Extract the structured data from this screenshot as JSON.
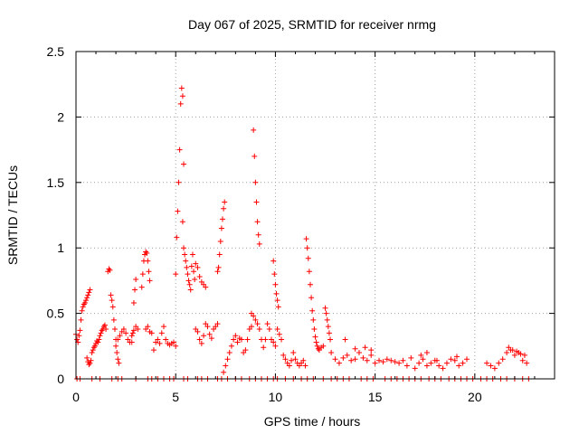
{
  "chart_data": {
    "type": "scatter",
    "title": "Day 067 of 2025, SRMTID for receiver nrmg",
    "xlabel": "GPS time / hours",
    "ylabel": "SRMTID / TECUs",
    "xlim": [
      0,
      24
    ],
    "ylim": [
      0,
      2.5
    ],
    "xticks": [
      0,
      5,
      10,
      15,
      20
    ],
    "yticks": [
      0,
      0.5,
      1,
      1.5,
      2,
      2.5
    ],
    "ytick_labels": [
      "0",
      "0.5",
      "1",
      "1.5",
      "2",
      "2.5"
    ],
    "xtick_labels": [
      "0",
      "5",
      "10",
      "15",
      "20"
    ],
    "grid": true,
    "marker": "+",
    "series_color": "#ff0000",
    "series": [
      {
        "name": "segment-0",
        "x": [
          0.0,
          0.05,
          0.1,
          0.15,
          0.2,
          0.25,
          0.3,
          0.35,
          0.4,
          0.45,
          0.5,
          0.55,
          0.6,
          0.65,
          0.7
        ],
        "y": [
          0.34,
          0.3,
          0.28,
          0.33,
          0.37,
          0.45,
          0.52,
          0.55,
          0.57,
          0.58,
          0.6,
          0.62,
          0.64,
          0.66,
          0.68
        ]
      },
      {
        "name": "segment-1",
        "x": [
          0.55,
          0.6,
          0.65,
          0.7,
          0.75,
          0.8,
          0.85,
          0.9,
          0.95,
          1.0,
          1.05,
          1.1,
          1.15,
          1.2,
          1.25,
          1.3,
          1.35,
          1.4,
          1.45,
          1.5
        ],
        "y": [
          0.16,
          0.13,
          0.11,
          0.12,
          0.14,
          0.2,
          0.22,
          0.24,
          0.25,
          0.27,
          0.29,
          0.28,
          0.3,
          0.33,
          0.35,
          0.37,
          0.38,
          0.4,
          0.41,
          0.38
        ]
      },
      {
        "name": "segment-2",
        "x": [
          1.6,
          1.65,
          1.7,
          1.75,
          1.8,
          1.85,
          1.9,
          1.95,
          2.0,
          2.05,
          2.1,
          2.15
        ],
        "y": [
          0.82,
          0.84,
          0.83,
          0.64,
          0.6,
          0.55,
          0.45,
          0.38,
          0.3,
          0.2,
          0.15,
          0.12
        ]
      },
      {
        "name": "segment-3",
        "x": [
          2.0,
          2.1,
          2.2,
          2.3,
          2.4,
          2.5,
          2.6,
          2.7,
          2.8,
          2.9,
          3.0,
          3.1
        ],
        "y": [
          0.25,
          0.3,
          0.33,
          0.36,
          0.38,
          0.35,
          0.3,
          0.28,
          0.33,
          0.37,
          0.4,
          0.38
        ]
      },
      {
        "name": "segment-4",
        "x": [
          2.8,
          2.85,
          2.9,
          2.95,
          3.0
        ],
        "y": [
          0.28,
          0.35,
          0.58,
          0.68,
          0.76
        ]
      },
      {
        "name": "segment-5",
        "x": [
          3.3,
          3.35,
          3.4,
          3.45,
          3.5,
          3.55,
          3.6,
          3.65,
          3.7
        ],
        "y": [
          0.7,
          0.8,
          0.9,
          0.95,
          0.97,
          0.96,
          0.9,
          0.82,
          0.75
        ]
      },
      {
        "name": "segment-6",
        "x": [
          3.5,
          3.6,
          3.7,
          3.8,
          3.9,
          4.0,
          4.1,
          4.2,
          4.3,
          4.4,
          4.5,
          4.6,
          4.7,
          4.8,
          4.9,
          5.0
        ],
        "y": [
          0.38,
          0.4,
          0.36,
          0.35,
          0.22,
          0.28,
          0.3,
          0.27,
          0.35,
          0.4,
          0.3,
          0.27,
          0.26,
          0.27,
          0.28,
          0.25
        ]
      },
      {
        "name": "segment-7",
        "x": [
          5.0,
          5.05,
          5.1,
          5.15,
          5.2,
          5.25,
          5.3,
          5.35,
          5.4
        ],
        "y": [
          0.8,
          1.08,
          1.28,
          1.5,
          1.75,
          2.1,
          2.22,
          2.16,
          1.64
        ]
      },
      {
        "name": "segment-8",
        "x": [
          5.35,
          5.4,
          5.45,
          5.5,
          5.55,
          5.6,
          5.65,
          5.7,
          5.75,
          5.8,
          5.85,
          5.9,
          5.95,
          6.0,
          6.1,
          6.2,
          6.3,
          6.4,
          6.5
        ],
        "y": [
          1.2,
          1.0,
          0.95,
          0.9,
          0.85,
          0.8,
          0.75,
          0.72,
          0.68,
          0.86,
          0.95,
          0.82,
          0.76,
          0.88,
          0.85,
          0.78,
          0.74,
          0.72,
          0.7
        ]
      },
      {
        "name": "segment-9",
        "x": [
          6.0,
          6.1,
          6.2,
          6.3,
          6.4,
          6.5,
          6.6,
          6.7,
          6.8,
          6.9,
          7.0,
          7.1
        ],
        "y": [
          0.38,
          0.36,
          0.3,
          0.27,
          0.33,
          0.42,
          0.4,
          0.34,
          0.31,
          0.38,
          0.4,
          0.42
        ]
      },
      {
        "name": "segment-10",
        "x": [
          7.1,
          7.15,
          7.2,
          7.25,
          7.3,
          7.35,
          7.4,
          7.45
        ],
        "y": [
          0.82,
          0.85,
          0.95,
          1.05,
          1.15,
          1.22,
          1.3,
          1.35
        ]
      },
      {
        "name": "segment-11",
        "x": [
          7.4,
          7.5,
          7.6,
          7.7,
          7.8,
          7.9,
          8.0,
          8.1,
          8.2,
          8.3,
          8.4,
          8.5,
          8.6,
          8.7,
          8.8
        ],
        "y": [
          0.05,
          0.1,
          0.15,
          0.2,
          0.25,
          0.3,
          0.33,
          0.28,
          0.31,
          0.3,
          0.2,
          0.22,
          0.3,
          0.38,
          0.4
        ]
      },
      {
        "name": "segment-12",
        "x": [
          8.9,
          8.95,
          9.0,
          9.05,
          9.1,
          9.15,
          9.2
        ],
        "y": [
          1.9,
          1.7,
          1.5,
          1.35,
          1.2,
          1.1,
          1.03
        ]
      },
      {
        "name": "segment-13",
        "x": [
          8.8,
          8.9,
          9.0,
          9.1,
          9.2,
          9.3,
          9.4,
          9.5,
          9.6,
          9.7,
          9.8,
          9.9,
          10.0,
          10.1,
          10.2,
          10.3
        ],
        "y": [
          0.5,
          0.48,
          0.45,
          0.42,
          0.38,
          0.3,
          0.24,
          0.3,
          0.42,
          0.38,
          0.3,
          0.28,
          0.25,
          0.38,
          0.34,
          0.3
        ]
      },
      {
        "name": "segment-14",
        "x": [
          9.9,
          9.95,
          10.0,
          10.05,
          10.1,
          10.15
        ],
        "y": [
          0.9,
          0.8,
          0.72,
          0.65,
          0.6,
          0.55
        ]
      },
      {
        "name": "segment-15",
        "x": [
          10.4,
          10.5,
          10.6,
          10.7,
          10.8,
          10.9,
          11.0,
          11.1,
          11.2,
          11.3,
          11.4,
          11.5
        ],
        "y": [
          0.18,
          0.15,
          0.12,
          0.1,
          0.14,
          0.2,
          0.15,
          0.12,
          0.1,
          0.12,
          0.14,
          0.1
        ]
      },
      {
        "name": "segment-16",
        "x": [
          11.55,
          11.6,
          11.65,
          11.7,
          11.75,
          11.8,
          11.85,
          11.9,
          11.95,
          12.0,
          12.05,
          12.1,
          12.15,
          12.2,
          12.3,
          12.4
        ],
        "y": [
          1.07,
          1.0,
          0.92,
          0.82,
          0.72,
          0.62,
          0.52,
          0.45,
          0.38,
          0.32,
          0.28,
          0.25,
          0.23,
          0.22,
          0.24,
          0.25
        ]
      },
      {
        "name": "segment-17",
        "x": [
          12.5,
          12.55,
          12.6,
          12.65,
          12.7,
          12.75
        ],
        "y": [
          0.54,
          0.5,
          0.45,
          0.4,
          0.35,
          0.3
        ]
      },
      {
        "name": "segment-18",
        "x": [
          12.8,
          13.0,
          13.2,
          13.4,
          13.6,
          13.8,
          14.0,
          14.2,
          14.4,
          14.6,
          14.8,
          15.0,
          15.2,
          15.4,
          15.6,
          15.8,
          16.0
        ],
        "y": [
          0.2,
          0.15,
          0.12,
          0.16,
          0.18,
          0.14,
          0.15,
          0.2,
          0.16,
          0.14,
          0.18,
          0.12,
          0.14,
          0.13,
          0.15,
          0.14,
          0.13
        ]
      },
      {
        "name": "segment-19",
        "x": [
          13.5,
          14.0,
          14.5,
          14.8
        ],
        "y": [
          0.3,
          0.23,
          0.24,
          0.22
        ]
      },
      {
        "name": "segment-20",
        "x": [
          16.2,
          16.4,
          16.6,
          16.8,
          17.0,
          17.2,
          17.4,
          17.6,
          17.8,
          18.0,
          18.2,
          18.4,
          18.6,
          18.8,
          19.0,
          19.2,
          19.4
        ],
        "y": [
          0.12,
          0.14,
          0.1,
          0.16,
          0.08,
          0.12,
          0.15,
          0.1,
          0.12,
          0.14,
          0.1,
          0.08,
          0.12,
          0.15,
          0.14,
          0.1,
          0.12
        ]
      },
      {
        "name": "segment-21",
        "x": [
          17.3,
          17.6,
          18.1,
          19.1,
          19.6
        ],
        "y": [
          0.18,
          0.2,
          0.14,
          0.17,
          0.15
        ]
      },
      {
        "name": "segment-22",
        "x": [
          20.6,
          20.8,
          21.0,
          21.2,
          21.4,
          21.6,
          21.8,
          22.0,
          22.2,
          22.4,
          22.6
        ],
        "y": [
          0.12,
          0.1,
          0.08,
          0.12,
          0.15,
          0.2,
          0.22,
          0.18,
          0.2,
          0.14,
          0.12
        ]
      },
      {
        "name": "segment-23",
        "x": [
          21.7,
          21.9,
          22.1,
          22.3,
          22.5
        ],
        "y": [
          0.24,
          0.22,
          0.21,
          0.19,
          0.18
        ]
      },
      {
        "name": "baseline-zeros",
        "x": [
          0.05,
          0.2,
          0.8,
          1.2,
          1.8,
          2.1,
          2.3,
          3.0,
          3.6,
          3.8,
          4.1,
          4.4,
          4.7,
          4.9,
          5.4,
          5.6,
          6.1,
          6.3,
          6.6,
          7.1,
          7.3,
          7.6,
          8.0,
          8.3,
          8.7,
          9.0,
          9.3,
          9.6,
          9.9,
          10.1,
          10.5,
          10.9,
          11.3,
          11.6,
          11.9,
          12.4,
          12.8,
          13.1,
          13.4,
          13.7,
          14.3,
          14.6,
          14.9,
          15.5,
          15.8,
          16.1,
          16.4,
          16.7,
          17.0,
          17.3,
          17.7,
          18.0,
          18.3,
          18.7,
          19.0,
          19.3,
          19.6,
          19.9,
          20.3,
          20.6,
          20.9,
          21.3,
          21.6,
          22.0,
          22.4,
          22.7
        ],
        "y": [
          0,
          0,
          0,
          0,
          0,
          0,
          0,
          0,
          0,
          0,
          0,
          0,
          0,
          0,
          0,
          0,
          0,
          0,
          0,
          0,
          0,
          0,
          0,
          0,
          0,
          0,
          0,
          0,
          0,
          0,
          0,
          0,
          0,
          0,
          0,
          0,
          0,
          0,
          0,
          0,
          0,
          0,
          0,
          0,
          0,
          0,
          0,
          0,
          0,
          0,
          0,
          0,
          0,
          0,
          0,
          0,
          0,
          0,
          0,
          0,
          0,
          0,
          0,
          0,
          0,
          0
        ]
      }
    ]
  }
}
